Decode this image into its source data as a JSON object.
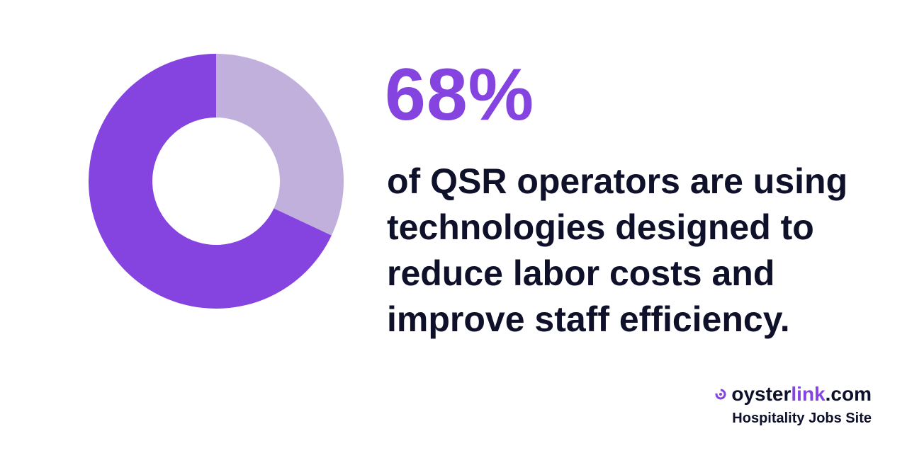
{
  "headline": {
    "value": "68%",
    "description_lines": [
      "of QSR operators are using",
      "technologies designed to",
      "reduce labor costs and",
      "improve staff efficiency."
    ]
  },
  "brand": {
    "name_part1": "oyster",
    "name_part2": "link",
    "name_part3": ".com",
    "tagline": "Hospitality Jobs Site",
    "logo_icon": "oyster-swirl-icon"
  },
  "colors": {
    "primary": "#8543e0",
    "secondary": "#c2b0dc",
    "text": "#0f1029"
  },
  "chart_data": {
    "type": "pie",
    "style": "donut",
    "slices": [
      {
        "value": 68,
        "color": "#8543e0"
      },
      {
        "value": 32,
        "color": "#c2b0dc"
      }
    ],
    "start": "top",
    "direction": "counterclockwise-primary"
  }
}
